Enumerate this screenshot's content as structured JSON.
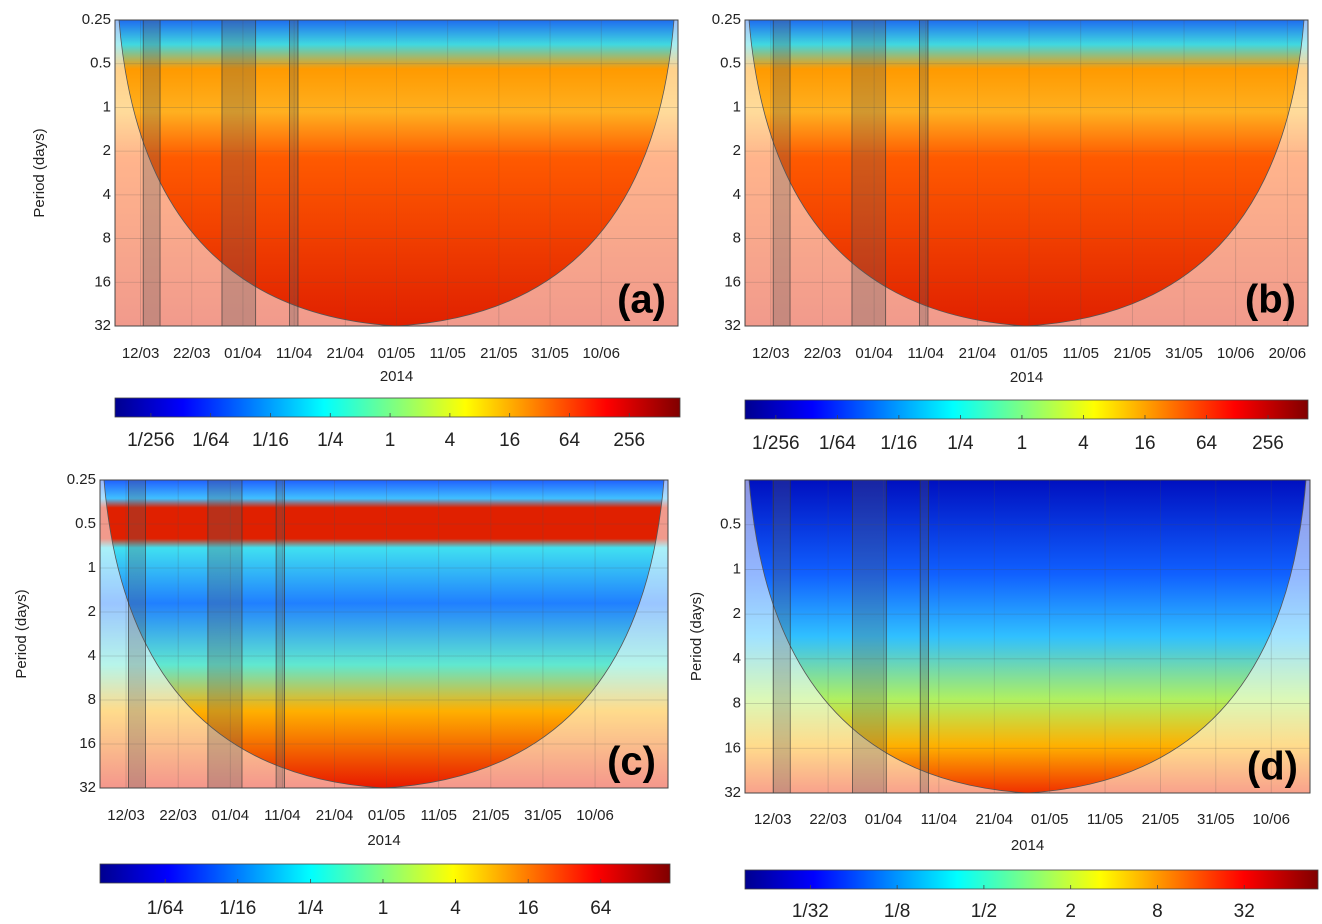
{
  "chart_data": [
    {
      "type": "wavelet",
      "panel_label": "(a)",
      "ylabel": "Period (days)",
      "xlabel": "2014",
      "colormap": "jet",
      "log_y": true,
      "ylim": [
        0.25,
        32
      ],
      "yticks": [
        0.25,
        0.5,
        1,
        2,
        4,
        8,
        16,
        32
      ],
      "xlim": [
        66,
        176
      ],
      "xticks": [
        {
          "value": 71,
          "label": "12/03"
        },
        {
          "value": 81,
          "label": "22/03"
        },
        {
          "value": 91,
          "label": "01/04"
        },
        {
          "value": 101,
          "label": "11/04"
        },
        {
          "value": 111,
          "label": "21/04"
        },
        {
          "value": 121,
          "label": "01/05"
        },
        {
          "value": 131,
          "label": "11/05"
        },
        {
          "value": 141,
          "label": "21/05"
        },
        {
          "value": 151,
          "label": "31/05"
        },
        {
          "value": 161,
          "label": "10/06"
        }
      ],
      "colorbar": {
        "log": true,
        "clim": [
          0.0017,
          830
        ],
        "ticks": [
          {
            "value": 0.00390625,
            "label": "1/256"
          },
          {
            "value": 0.015625,
            "label": "1/64"
          },
          {
            "value": 0.0625,
            "label": "1/16"
          },
          {
            "value": 0.25,
            "label": "1/4"
          },
          1,
          4,
          16,
          64,
          256
        ]
      }
    },
    {
      "type": "wavelet",
      "panel_label": "(b)",
      "xlabel": "2014",
      "colormap": "jet",
      "log_y": true,
      "ylim": [
        0.25,
        32
      ],
      "yticks": [
        0.25,
        0.5,
        1,
        2,
        4,
        8,
        16,
        32
      ],
      "xlim": [
        66,
        175
      ],
      "xticks": [
        {
          "value": 71,
          "label": "12/03"
        },
        {
          "value": 81,
          "label": "22/03"
        },
        {
          "value": 91,
          "label": "01/04"
        },
        {
          "value": 101,
          "label": "11/04"
        },
        {
          "value": 111,
          "label": "21/04"
        },
        {
          "value": 121,
          "label": "01/05"
        },
        {
          "value": 131,
          "label": "11/05"
        },
        {
          "value": 141,
          "label": "21/05"
        },
        {
          "value": 151,
          "label": "31/05"
        },
        {
          "value": 161,
          "label": "10/06"
        },
        {
          "value": 171,
          "label": "20/06"
        }
      ],
      "colorbar": {
        "log": true,
        "clim": [
          0.00195,
          630
        ],
        "ticks": [
          {
            "value": 0.00390625,
            "label": "1/256"
          },
          {
            "value": 0.015625,
            "label": "1/64"
          },
          {
            "value": 0.0625,
            "label": "1/16"
          },
          {
            "value": 0.25,
            "label": "1/4"
          },
          1,
          4,
          16,
          64,
          256
        ]
      }
    },
    {
      "type": "wavelet",
      "panel_label": "(c)",
      "ylabel": "Period (days)",
      "xlabel": "2014",
      "colormap": "jet",
      "log_y": true,
      "ylim": [
        0.25,
        32
      ],
      "yticks": [
        0.25,
        0.5,
        1,
        2,
        4,
        8,
        16,
        32
      ],
      "xlim": [
        66,
        175
      ],
      "xticks": [
        {
          "value": 71,
          "label": "12/03"
        },
        {
          "value": 81,
          "label": "22/03"
        },
        {
          "value": 91,
          "label": "01/04"
        },
        {
          "value": 101,
          "label": "11/04"
        },
        {
          "value": 111,
          "label": "21/04"
        },
        {
          "value": 121,
          "label": "01/05"
        },
        {
          "value": 131,
          "label": "11/05"
        },
        {
          "value": 141,
          "label": "21/05"
        },
        {
          "value": 151,
          "label": "31/05"
        },
        {
          "value": 161,
          "label": "10/06"
        }
      ],
      "colorbar": {
        "log": true,
        "clim": [
          0.0045,
          240
        ],
        "ticks": [
          {
            "value": 0.015625,
            "label": "1/64"
          },
          {
            "value": 0.0625,
            "label": "1/16"
          },
          {
            "value": 0.25,
            "label": "1/4"
          },
          1,
          4,
          16,
          64
        ]
      }
    },
    {
      "type": "wavelet",
      "panel_label": "(d)",
      "ylabel": "Period (days)",
      "xlabel": "2014",
      "colormap": "jet",
      "log_y": true,
      "ylim": [
        0.25,
        32
      ],
      "yticks": [
        0.5,
        1,
        2,
        4,
        8,
        16,
        32
      ],
      "xlim": [
        66,
        168
      ],
      "xticks": [
        {
          "value": 71,
          "label": "12/03"
        },
        {
          "value": 81,
          "label": "22/03"
        },
        {
          "value": 91,
          "label": "01/04"
        },
        {
          "value": 101,
          "label": "11/04"
        },
        {
          "value": 111,
          "label": "21/04"
        },
        {
          "value": 121,
          "label": "01/05"
        },
        {
          "value": 131,
          "label": "11/05"
        },
        {
          "value": 141,
          "label": "21/05"
        },
        {
          "value": 151,
          "label": "31/05"
        },
        {
          "value": 161,
          "label": "10/06"
        }
      ],
      "colorbar": {
        "log": true,
        "clim": [
          0.011,
          104
        ],
        "ticks": [
          {
            "value": 0.03125,
            "label": "1/32"
          },
          {
            "value": 0.125,
            "label": "1/8"
          },
          {
            "value": 0.5,
            "label": "1/2"
          },
          2,
          8,
          32
        ]
      }
    }
  ]
}
